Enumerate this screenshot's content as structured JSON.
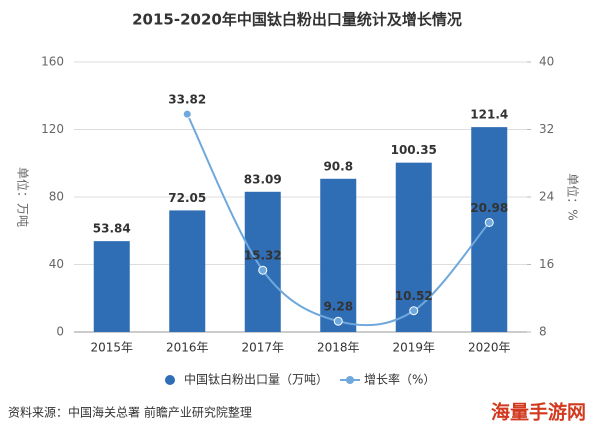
{
  "chart_data": {
    "type": "bar",
    "title": "2015-2020年中国钛白粉出口量统计及增长情况",
    "categories": [
      "2015年",
      "2016年",
      "2017年",
      "2018年",
      "2019年",
      "2020年"
    ],
    "series": [
      {
        "name": "中国钛白粉出口量（万吨）",
        "type": "bar",
        "color": "#2f6db5",
        "values": [
          53.84,
          72.05,
          83.09,
          90.8,
          100.35,
          121.4
        ]
      },
      {
        "name": "增长率（%）",
        "type": "line",
        "axis": "y2",
        "color": "#6fa8dc",
        "values": [
          null,
          33.82,
          15.32,
          9.28,
          10.52,
          20.98
        ]
      }
    ],
    "ylabel": "单位：万吨",
    "y2label": "单位：%",
    "ylim": [
      0,
      160
    ],
    "yticks": [
      0,
      40,
      80,
      120,
      160
    ],
    "y2lim": [
      8,
      40
    ],
    "y2ticks": [
      8,
      16,
      24,
      32,
      40
    ],
    "grid": true,
    "legend": "bottom",
    "source": "资料来源：中国海关总署 前瞻产业研究院整理",
    "watermark": "海量手游网"
  }
}
